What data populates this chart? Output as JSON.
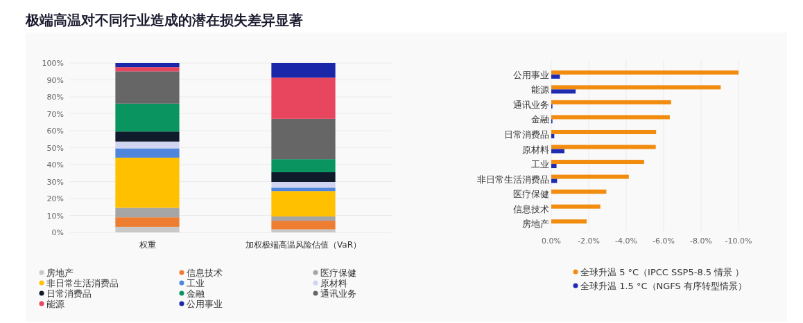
{
  "chart_data": [
    {
      "type": "bar",
      "title": "极端高温对不同行业造成的潜在损失差异显著",
      "stacked": true,
      "grid": "y",
      "legend": "bottom",
      "categories": [
        "权重",
        "加权极端高温风险估值（VaR）"
      ],
      "ylim": [
        0,
        100
      ],
      "yticks": [
        {
          "value": 0,
          "label": "0%"
        },
        {
          "value": 10,
          "label": "10%"
        },
        {
          "value": 20,
          "label": "20%"
        },
        {
          "value": 30,
          "label": "30%"
        },
        {
          "value": 40,
          "label": "40%"
        },
        {
          "value": 50,
          "label": "50%"
        },
        {
          "value": 60,
          "label": "60%"
        },
        {
          "value": 70,
          "label": "70%"
        },
        {
          "value": 80,
          "label": "80%"
        },
        {
          "value": 90,
          "label": "90%"
        },
        {
          "value": 100,
          "label": "100%"
        }
      ],
      "series": [
        {
          "name": "房地产",
          "color": "#c8c8c8",
          "values": [
            3.3,
            1.8
          ]
        },
        {
          "name": "信息技术",
          "color": "#ed7d31",
          "values": [
            5.6,
            5.1
          ]
        },
        {
          "name": "医疗保健",
          "color": "#a5a5a5",
          "values": [
            5.6,
            2.5
          ]
        },
        {
          "name": "非日常生活消费品",
          "color": "#ffc000",
          "values": [
            29.6,
            15.0
          ]
        },
        {
          "name": "工业",
          "color": "#4f86dc",
          "values": [
            5.5,
            2.0
          ]
        },
        {
          "name": "原材料",
          "color": "#d0d4f0",
          "values": [
            4.0,
            3.4
          ]
        },
        {
          "name": "日常消费品",
          "color": "#0f1a2a",
          "values": [
            5.9,
            5.7
          ]
        },
        {
          "name": "金融",
          "color": "#0a9560",
          "values": [
            16.5,
            7.7
          ]
        },
        {
          "name": "通讯业务",
          "color": "#666666",
          "values": [
            19.0,
            23.8
          ]
        },
        {
          "name": "能源",
          "color": "#e8455f",
          "values": [
            2.5,
            24.3
          ]
        },
        {
          "name": "公用事业",
          "color": "#1a27a8",
          "values": [
            2.5,
            8.7
          ]
        }
      ]
    },
    {
      "type": "bar",
      "orientation": "horizontal",
      "grid": "x",
      "legend": "bottom right",
      "categories": [
        "公用事业",
        "能源",
        "通讯业务",
        "金融",
        "日常消费品",
        "原材料",
        "工业",
        "非日常生活消费品",
        "医疗保健",
        "信息技术",
        "房地产"
      ],
      "xlim": [
        0,
        -10
      ],
      "xticks": [
        {
          "value": 0,
          "label": "0.0%"
        },
        {
          "value": -2,
          "label": "-2.0%"
        },
        {
          "value": -4,
          "label": "-4.0%"
        },
        {
          "value": -6,
          "label": "-6.0%"
        },
        {
          "value": -8,
          "label": "-8.0%"
        },
        {
          "value": -10,
          "label": "-10.0%"
        }
      ],
      "series": [
        {
          "name": "全球升温 5 °C（IPCC SSP5-8.5 情景 ）",
          "color": "#f28c0f",
          "values": [
            -10.0,
            -9.05,
            -6.4,
            -6.33,
            -5.6,
            -5.58,
            -4.96,
            -4.14,
            -2.94,
            -2.62,
            -1.89
          ]
        },
        {
          "name": "全球升温 1.5 °C（NGFS 有序转型情景）",
          "color": "#1f2bb0",
          "values": [
            -0.46,
            -1.3,
            -0.06,
            -0.06,
            -0.16,
            -0.7,
            -0.28,
            -0.31,
            null,
            null,
            null
          ]
        }
      ]
    }
  ]
}
